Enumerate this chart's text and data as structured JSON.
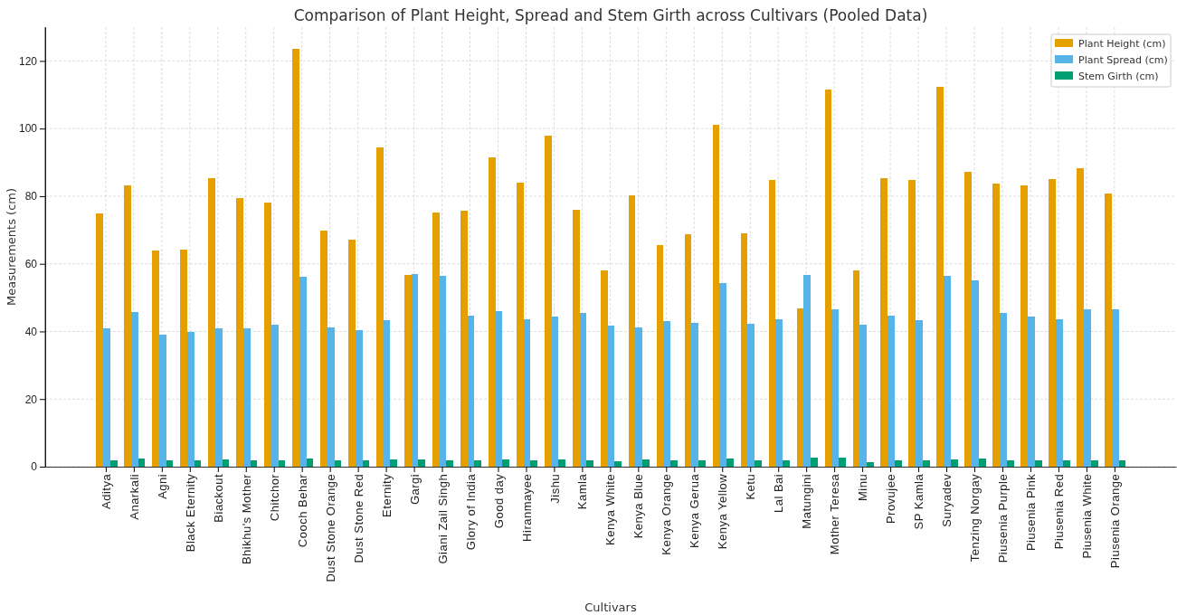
{
  "chart_data": {
    "type": "bar",
    "title": "Comparison of Plant Height, Spread and Stem Girth across Cultivars (Pooled Data)",
    "xlabel": "Cultivars",
    "ylabel": "Measurements (cm)",
    "categories": [
      "Aditya",
      "Anarkali",
      "Agni",
      "Black Eternity",
      "Biackout",
      "Bhikhu's Mother",
      "Chitchor",
      "Cooch Behar",
      "Dust Stone Orange",
      "Dust Stone Red",
      "Eternity",
      "Gargi",
      "Giani Zail Singh",
      "Glory of India",
      "Good day",
      "Hiranmayee",
      "Jishu",
      "Kamla",
      "Kenya White",
      "Kenya Blue",
      "Kenya Orange",
      "Kenya Gerua",
      "Kenya Yellow",
      "Ketu",
      "Lal Bai",
      "Matungini",
      "Mother Teresa",
      "Minu",
      "Provujee",
      "SP Kamla",
      "Suryadev",
      "Tenzing Norgay",
      "Piusenia Purple",
      "Piusenia Pink",
      "Piusenia Red",
      "Piusenia White",
      "Piusenia Orange"
    ],
    "series": [
      {
        "name": "Plant Height (cm)",
        "color": "#e69f00",
        "values": [
          75,
          83.2,
          63.8,
          64.3,
          85.3,
          79.5,
          78.2,
          123.5,
          69.8,
          67.2,
          94.5,
          56.7,
          75.2,
          75.7,
          91.5,
          84.1,
          98,
          76.1,
          58.1,
          80.3,
          65.6,
          68.7,
          101,
          69,
          84.8,
          46.9,
          111.6,
          58.1,
          85.4,
          84.7,
          112.3,
          87.3,
          83.8,
          83.2,
          85.1,
          88.3,
          80.7
        ]
      },
      {
        "name": "Plant Spread (cm)",
        "color": "#56b4e9",
        "values": [
          40.8,
          45.7,
          39.1,
          39.8,
          40.8,
          40.8,
          42.1,
          56.2,
          41.3,
          40.4,
          43.4,
          56.9,
          56.4,
          44.7,
          46,
          43.6,
          44.4,
          45.4,
          41.8,
          41.2,
          43,
          42.4,
          54.4,
          42.2,
          43.6,
          56.6,
          46.5,
          41.9,
          44.6,
          43.3,
          56.5,
          55.2,
          45.4,
          44.5,
          43.7,
          46.5,
          46.5
        ]
      },
      {
        "name": "Stem Girth (cm)",
        "color": "#009e73",
        "values": [
          2,
          2.3,
          1.9,
          1.9,
          2.1,
          2,
          1.9,
          2.4,
          2,
          1.9,
          2.2,
          2.2,
          1.9,
          1.9,
          2.1,
          2,
          2.2,
          1.9,
          1.6,
          2.2,
          1.9,
          1.9,
          2.3,
          1.8,
          1.8,
          2.8,
          2.6,
          1.3,
          1.8,
          1.8,
          2.2,
          2.3,
          1.8,
          1.8,
          1.8,
          1.8,
          1.8
        ]
      }
    ],
    "ylim": [
      0,
      130
    ],
    "yticks": [
      0,
      20,
      40,
      60,
      80,
      100,
      120
    ],
    "grid": true,
    "legend": "top right"
  }
}
